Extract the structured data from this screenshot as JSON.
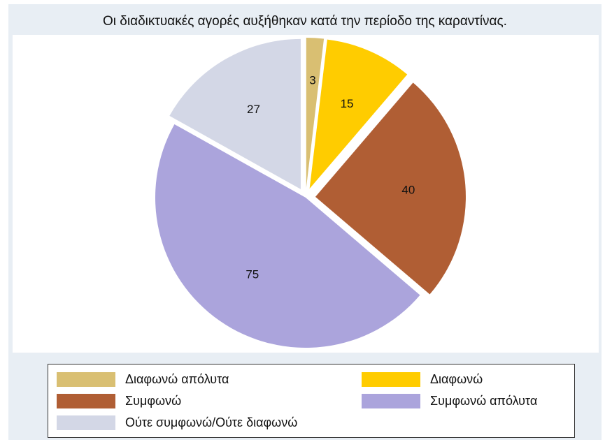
{
  "chart_data": {
    "type": "pie",
    "title": "Οι διαδικτυακές αγορές αυξήθηκαν κατά την περίοδο της καραντίνας.",
    "slices": [
      {
        "label": "Διαφωνώ απόλυτα",
        "value": 3,
        "color": "#d9bf72",
        "exploded": true
      },
      {
        "label": "Διαφωνώ",
        "value": 15,
        "color": "#ffcc00",
        "exploded": true
      },
      {
        "label": "Συμφωνώ",
        "value": 40,
        "color": "#b05e34",
        "exploded": true
      },
      {
        "label": "Συμφωνώ απόλυτα",
        "value": 75,
        "color": "#aba4dc",
        "exploded": false
      },
      {
        "label": "Ούτε συμφωνώ/Ούτε διαφωνώ",
        "value": 27,
        "color": "#d3d7e6",
        "exploded": true
      }
    ],
    "legend_position": "bottom",
    "legend_columns": 2
  }
}
